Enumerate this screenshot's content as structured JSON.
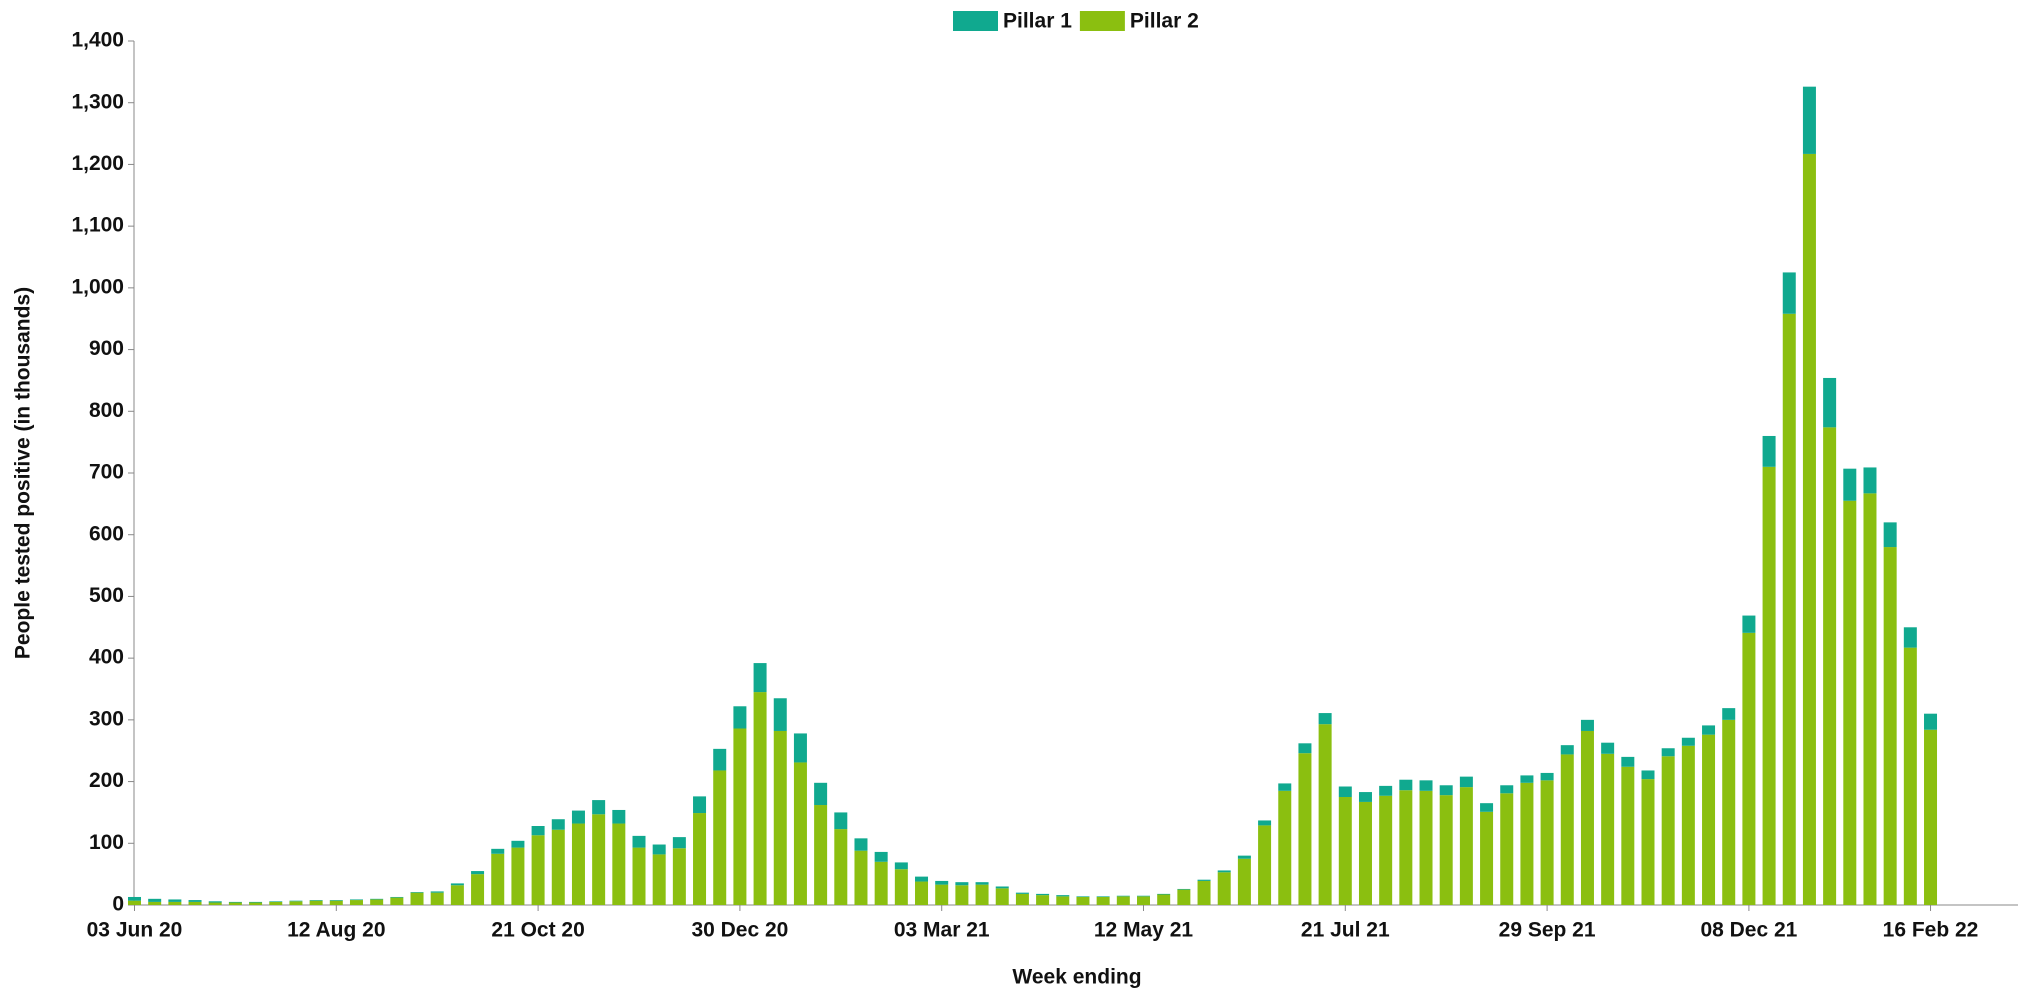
{
  "chart_data": {
    "type": "stacked_bar",
    "x_label": "Week ending",
    "y_label": "People tested positive (in thousands)",
    "categories": [
      "03 Jun 20",
      null,
      null,
      null,
      null,
      null,
      null,
      null,
      null,
      null,
      "12 Aug 20",
      null,
      null,
      null,
      null,
      null,
      null,
      null,
      null,
      null,
      "21 Oct 20",
      null,
      null,
      null,
      null,
      null,
      null,
      null,
      null,
      null,
      "30 Dec 20",
      null,
      null,
      null,
      null,
      null,
      null,
      null,
      null,
      null,
      "03 Mar 21",
      null,
      null,
      null,
      null,
      null,
      null,
      null,
      null,
      null,
      "12 May 21",
      null,
      null,
      null,
      null,
      null,
      null,
      null,
      null,
      null,
      "21 Jul 21",
      null,
      null,
      null,
      null,
      null,
      null,
      null,
      null,
      null,
      "29 Sep 21",
      null,
      null,
      null,
      null,
      null,
      null,
      null,
      null,
      null,
      "08 Dec 21",
      null,
      null,
      null,
      null,
      null,
      null,
      null,
      null,
      "16 Feb 22"
    ],
    "series": [
      {
        "name": "Pillar 2",
        "color": "#8bbf10",
        "values": [
          7,
          5,
          5,
          5,
          4,
          4,
          4,
          5,
          6,
          7,
          7,
          8,
          9,
          12,
          20,
          20,
          32,
          50,
          83,
          93,
          113,
          122,
          132,
          147,
          132,
          93,
          82,
          92,
          149,
          218,
          286,
          345,
          282,
          231,
          162,
          123,
          88,
          70,
          58,
          38,
          33,
          32,
          33,
          27,
          18,
          16,
          14,
          13,
          13,
          14,
          14,
          17,
          25,
          39,
          53,
          75,
          129,
          185,
          246,
          293,
          175,
          167,
          177,
          186,
          185,
          178,
          191,
          151,
          181,
          198,
          202,
          244,
          282,
          245,
          224,
          204,
          241,
          258,
          276,
          300,
          441,
          710,
          958,
          1217,
          774,
          655,
          667,
          580,
          417,
          284
        ]
      },
      {
        "name": "Pillar 1",
        "color": "#10a98f",
        "values": [
          6,
          5,
          4,
          3,
          2,
          1,
          1,
          1,
          1,
          1,
          1,
          1,
          1,
          1,
          1,
          2,
          3,
          5,
          8,
          11,
          15,
          17,
          21,
          23,
          22,
          19,
          16,
          18,
          27,
          35,
          36,
          47,
          53,
          47,
          36,
          27,
          20,
          16,
          11,
          8,
          6,
          5,
          4,
          3,
          2,
          2,
          2,
          1,
          1,
          1,
          1,
          1,
          1,
          2,
          3,
          5,
          8,
          12,
          16,
          18,
          17,
          16,
          16,
          17,
          17,
          16,
          17,
          14,
          13,
          12,
          12,
          15,
          18,
          18,
          16,
          14,
          13,
          13,
          15,
          19,
          28,
          50,
          67,
          109,
          80,
          52,
          42,
          40,
          33,
          26
        ]
      }
    ],
    "legend_order": [
      1,
      0
    ],
    "ylim": [
      0,
      1400
    ],
    "yticks": [
      0,
      100,
      200,
      300,
      400,
      500,
      600,
      700,
      800,
      900,
      {
        "value": 1000,
        "label": "1,000"
      },
      {
        "value": 1100,
        "label": "1,100"
      },
      {
        "value": 1200,
        "label": "1,200"
      },
      {
        "value": 1300,
        "label": "1,300"
      },
      {
        "value": 1400,
        "label": "1,400"
      }
    ],
    "grid": false
  }
}
